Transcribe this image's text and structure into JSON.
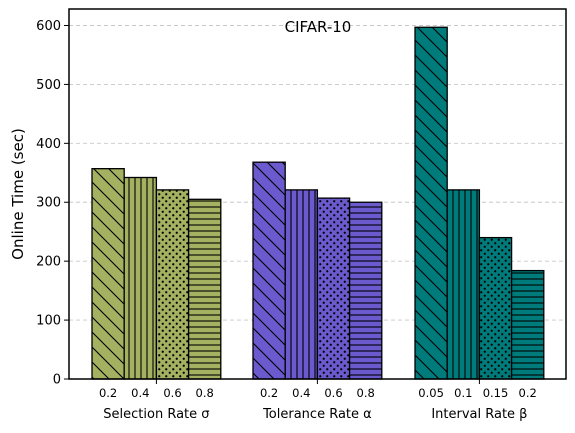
{
  "chart_data": {
    "type": "bar",
    "title": "CIFAR-10",
    "ylabel": "Online Time (sec)",
    "ylim": [
      0,
      628
    ],
    "yticks": [
      0,
      100,
      200,
      300,
      400,
      500,
      600
    ],
    "grid": "horizontal dashed",
    "groups": [
      {
        "label": "Selection Rate  σ",
        "color": "#a3b161",
        "categories": [
          "0.2",
          "0.4",
          "0.6",
          "0.8"
        ],
        "values": [
          357,
          342,
          321,
          305
        ]
      },
      {
        "label": "Tolerance Rate  α",
        "color": "#6a5acd",
        "categories": [
          "0.2",
          "0.4",
          "0.6",
          "0.8"
        ],
        "values": [
          368,
          321,
          307,
          300
        ]
      },
      {
        "label": "Interval Rate  β",
        "color": "#007b7b",
        "categories": [
          "0.05",
          "0.1",
          "0.15",
          "0.2"
        ],
        "values": [
          597,
          321,
          240,
          184
        ]
      }
    ],
    "hatches": [
      "diagonal",
      "vertical",
      "dots",
      "horizontal"
    ]
  }
}
